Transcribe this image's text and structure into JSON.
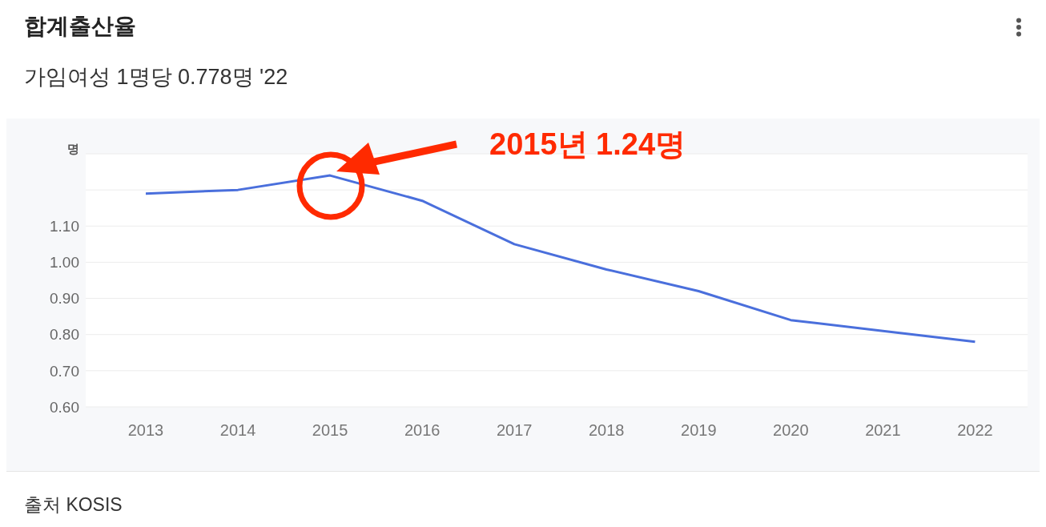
{
  "chart_data": {
    "type": "line",
    "title": "합계출산율",
    "subtitle": "가임여성 1명당 0.778명 '22",
    "ylabel": "명",
    "categories": [
      "2013",
      "2014",
      "2015",
      "2016",
      "2017",
      "2018",
      "2019",
      "2020",
      "2021",
      "2022"
    ],
    "series": [
      {
        "color": "#4a6fdc",
        "values": [
          1.19,
          1.2,
          1.24,
          1.17,
          1.05,
          0.98,
          0.92,
          0.84,
          0.81,
          0.78
        ]
      }
    ],
    "ylim": [
      0.6,
      1.3
    ],
    "yticks": [
      {
        "value": 0.6,
        "label": "0.60"
      },
      {
        "value": 0.7,
        "label": "0.70"
      },
      {
        "value": 0.8,
        "label": "0.80"
      },
      {
        "value": 0.9,
        "label": "0.90"
      },
      {
        "value": 1.0,
        "label": "1.00"
      },
      {
        "value": 1.1,
        "label": "1.10"
      },
      {
        "value": 1.2,
        "label": null
      },
      {
        "value": 1.3,
        "label": null
      }
    ],
    "grid": "y",
    "marker": "none",
    "line_style": "solid",
    "annotations": [
      "2015년 1.24명",
      "출처 KOSIS"
    ]
  }
}
